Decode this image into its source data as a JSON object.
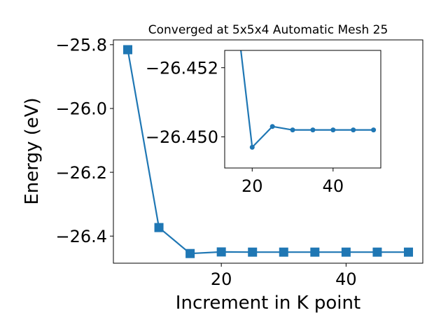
{
  "chart_data": [
    {
      "type": "line",
      "title": "Converged at 5x5x4 Automatic Mesh 25",
      "xlabel": "Increment in K point",
      "ylabel": "Energy (eV)",
      "xlim": [
        2.7,
        52.3
      ],
      "ylim": [
        -26.485,
        -25.785
      ],
      "xticks": [
        20,
        40
      ],
      "xtick_labels": [
        "20",
        "40"
      ],
      "yticks": [
        -25.8,
        -26.0,
        -26.2,
        -26.4
      ],
      "ytick_labels": [
        "−25.8",
        "−26.0",
        "−26.2",
        "−26.4"
      ],
      "grid": false,
      "marker": "square",
      "color": "#1f77b4",
      "series": [
        {
          "x": [
            5,
            10,
            15,
            20,
            25,
            30,
            35,
            40,
            45,
            50
          ],
          "y": [
            -25.8157,
            -26.3733,
            -26.4547,
            -26.4497,
            -26.4503,
            -26.4503,
            -26.4503,
            -26.4503,
            -26.4503,
            -26.4503
          ]
        }
      ]
    },
    {
      "type": "line",
      "role": "inset",
      "xlim": [
        13.2,
        51.8
      ],
      "ylim": [
        -26.4491,
        -26.4525
      ],
      "xticks": [
        20,
        40
      ],
      "xtick_labels": [
        "20",
        "40"
      ],
      "yticks": [
        -26.452,
        -26.45
      ],
      "ytick_labels": [
        "−26.452",
        "−26.450"
      ],
      "grid": false,
      "marker": "circle",
      "color": "#1f77b4",
      "series": [
        {
          "x": [
            15,
            20,
            25,
            30,
            35,
            40,
            45,
            50
          ],
          "y": [
            -26.4547,
            -26.4497,
            -26.4503,
            -26.4502,
            -26.4502,
            -26.4502,
            -26.4502,
            -26.4502
          ]
        }
      ]
    }
  ]
}
